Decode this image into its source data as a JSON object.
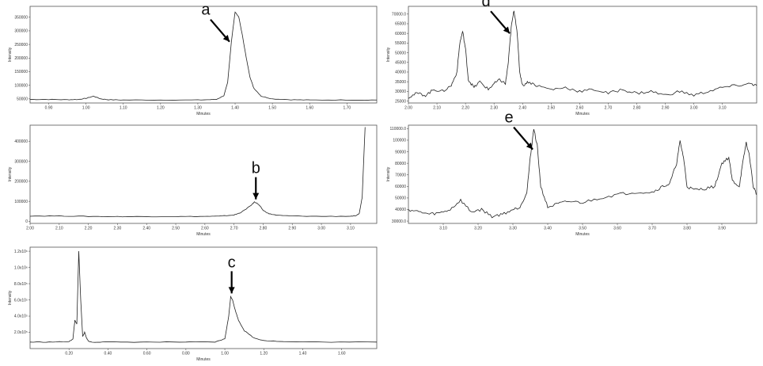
{
  "chart_data": [
    {
      "type": "line",
      "panel_label": "a",
      "xlabel": "Minutes",
      "ylabel": "Intensity",
      "xlim": [
        0.85,
        1.78
      ],
      "ylim": [
        35000,
        390000
      ],
      "x_ticks": [
        0.9,
        1.0,
        1.1,
        1.2,
        1.3,
        1.4,
        1.5,
        1.6,
        1.7
      ],
      "x_tick_labels": [
        "0.90",
        "1.00",
        "1.10",
        "1.20",
        "1.30",
        "1.40",
        "1.50",
        "1.60",
        "1.70"
      ],
      "y_ticks": [
        50000,
        100000,
        150000,
        200000,
        250000,
        300000,
        350000
      ],
      "y_tick_labels": [
        "50000",
        "100000",
        "150000",
        "200000",
        "250000",
        "300000",
        "350000"
      ],
      "series": [
        {
          "x": [
            0.85,
            0.9,
            0.95,
            0.98,
            1.0,
            1.02,
            1.04,
            1.06,
            1.1,
            1.2,
            1.3,
            1.35,
            1.37,
            1.38,
            1.39,
            1.4,
            1.41,
            1.42,
            1.43,
            1.44,
            1.45,
            1.47,
            1.5,
            1.55,
            1.6,
            1.7,
            1.78
          ],
          "y": [
            48000,
            48000,
            47000,
            48000,
            52000,
            60000,
            50000,
            47000,
            46000,
            46000,
            46000,
            48000,
            62000,
            110000,
            260000,
            370000,
            350000,
            280000,
            200000,
            130000,
            90000,
            60000,
            50000,
            47000,
            46000,
            46000,
            46000
          ]
        }
      ],
      "annotation": {
        "text": "a",
        "x": 1.385,
        "y": 260000
      }
    },
    {
      "type": "line",
      "panel_label": "b",
      "xlabel": "Minutes",
      "ylabel": "Intensity",
      "xlim": [
        2.0,
        3.19
      ],
      "ylim": [
        -10000,
        480000
      ],
      "x_ticks": [
        2.0,
        2.1,
        2.2,
        2.3,
        2.4,
        2.5,
        2.6,
        2.7,
        2.8,
        2.9,
        3.0,
        3.1
      ],
      "x_tick_labels": [
        "2.00",
        "2.10",
        "2.20",
        "2.30",
        "2.40",
        "2.50",
        "2.60",
        "2.70",
        "2.80",
        "2.90",
        "3.00",
        "3.10"
      ],
      "y_ticks": [
        0,
        100000,
        200000,
        300000,
        400000
      ],
      "y_tick_labels": [
        "0",
        "100000",
        "200000",
        "300000",
        "400000"
      ],
      "series": [
        {
          "x": [
            2.0,
            2.1,
            2.2,
            2.3,
            2.4,
            2.5,
            2.6,
            2.65,
            2.7,
            2.72,
            2.74,
            2.76,
            2.77,
            2.78,
            2.79,
            2.8,
            2.82,
            2.85,
            2.9,
            3.0,
            3.1,
            3.12,
            3.13,
            3.14,
            3.145,
            3.15
          ],
          "y": [
            27000,
            27000,
            25000,
            24000,
            24000,
            24000,
            25000,
            26000,
            32000,
            42000,
            60000,
            82000,
            97000,
            90000,
            75000,
            55000,
            38000,
            30000,
            27000,
            25000,
            26000,
            28000,
            40000,
            120000,
            300000,
            470000
          ]
        }
      ],
      "annotation": {
        "text": "b",
        "x": 2.775,
        "y": 110000
      }
    },
    {
      "type": "line",
      "panel_label": "c",
      "xlabel": "Minutes",
      "ylabel": "Intensity",
      "xlim": [
        0.0,
        1.78
      ],
      "ylim": [
        0,
        1250000
      ],
      "x_ticks": [
        0.2,
        0.4,
        0.6,
        0.8,
        1.0,
        1.2,
        1.4,
        1.6
      ],
      "x_tick_labels": [
        "0.20",
        "0.40",
        "0.60",
        "0.80",
        "1.00",
        "1.20",
        "1.40",
        "1.60"
      ],
      "y_ticks": [
        200000,
        400000,
        600000,
        800000,
        1000000,
        1200000
      ],
      "y_tick_labels": [
        "2.0x10⁵",
        "4.0x10⁵",
        "6.0x10⁵",
        "8.0x10⁵",
        "1.0x10⁶",
        "1.2x10⁶"
      ],
      "series": [
        {
          "x": [
            0.0,
            0.1,
            0.2,
            0.22,
            0.23,
            0.24,
            0.25,
            0.26,
            0.27,
            0.28,
            0.29,
            0.3,
            0.32,
            0.4,
            0.6,
            0.8,
            0.95,
            1.0,
            1.02,
            1.03,
            1.04,
            1.05,
            1.07,
            1.1,
            1.15,
            1.2,
            1.3,
            1.5,
            1.78
          ],
          "y": [
            80000,
            80000,
            85000,
            120000,
            350000,
            300000,
            1200000,
            600000,
            150000,
            200000,
            130000,
            90000,
            80000,
            80000,
            80000,
            80000,
            80000,
            120000,
            400000,
            640000,
            600000,
            500000,
            350000,
            220000,
            130000,
            100000,
            85000,
            80000,
            80000
          ]
        }
      ],
      "annotation": {
        "text": "c",
        "x": 1.035,
        "y": 680000
      }
    },
    {
      "type": "line",
      "panel_label": "d",
      "xlabel": "Minutes",
      "ylabel": "Intensity",
      "xlim": [
        2.0,
        3.22
      ],
      "ylim": [
        24000,
        74000
      ],
      "x_ticks": [
        2.0,
        2.1,
        2.2,
        2.3,
        2.4,
        2.5,
        2.6,
        2.7,
        2.8,
        2.9,
        3.0,
        3.1
      ],
      "x_tick_labels": [
        "2.00",
        "2.10",
        "2.20",
        "2.30",
        "2.40",
        "2.50",
        "2.60",
        "2.70",
        "2.80",
        "2.90",
        "3.00",
        "3.10"
      ],
      "y_ticks": [
        25000,
        30000,
        35000,
        40000,
        45000,
        50000,
        55000,
        60000,
        65000,
        70000
      ],
      "y_tick_labels": [
        "25000",
        "30000",
        "35000",
        "40000",
        "45000",
        "50000",
        "55000",
        "60000",
        "65000",
        "70000.0"
      ],
      "series": [
        {
          "x": [
            2.0,
            2.03,
            2.06,
            2.09,
            2.12,
            2.15,
            2.17,
            2.18,
            2.19,
            2.2,
            2.21,
            2.23,
            2.25,
            2.28,
            2.3,
            2.32,
            2.34,
            2.35,
            2.36,
            2.37,
            2.38,
            2.39,
            2.4,
            2.42,
            2.45,
            2.5,
            2.55,
            2.6,
            2.65,
            2.7,
            2.75,
            2.8,
            2.85,
            2.9,
            2.95,
            3.0,
            3.05,
            3.1,
            3.15,
            3.2,
            3.22
          ],
          "y": [
            27000,
            29000,
            28000,
            31000,
            30000,
            33000,
            40000,
            55000,
            61000,
            52000,
            36000,
            32000,
            35000,
            31000,
            34000,
            36000,
            34000,
            45000,
            63000,
            72000,
            62000,
            40000,
            33000,
            35000,
            33000,
            31000,
            32000,
            30000,
            31000,
            29000,
            31000,
            29000,
            30000,
            28000,
            30000,
            28000,
            30000,
            32000,
            33000,
            34000,
            33000
          ]
        }
      ],
      "annotation": {
        "text": "d",
        "x": 2.355,
        "y": 60000
      }
    },
    {
      "type": "line",
      "panel_label": "e",
      "xlabel": "Minutes",
      "ylabel": "Intensity",
      "xlim": [
        3.0,
        4.0
      ],
      "ylim": [
        28000,
        113000
      ],
      "x_ticks": [
        3.1,
        3.2,
        3.3,
        3.4,
        3.5,
        3.6,
        3.7,
        3.8,
        3.9
      ],
      "x_tick_labels": [
        "3.10",
        "3.20",
        "3.30",
        "3.40",
        "3.50",
        "3.60",
        "3.70",
        "3.80",
        "3.90"
      ],
      "y_ticks": [
        30000,
        40000,
        50000,
        60000,
        70000,
        80000,
        90000,
        100000,
        110000
      ],
      "y_tick_labels": [
        "30000.0",
        "40000",
        "50000",
        "60000",
        "70000",
        "80000",
        "90000",
        "100000",
        "110000.0"
      ],
      "series": [
        {
          "x": [
            3.0,
            3.03,
            3.06,
            3.09,
            3.12,
            3.15,
            3.18,
            3.21,
            3.24,
            3.27,
            3.3,
            3.32,
            3.34,
            3.35,
            3.36,
            3.37,
            3.38,
            3.4,
            3.43,
            3.46,
            3.5,
            3.55,
            3.6,
            3.65,
            3.7,
            3.73,
            3.75,
            3.77,
            3.78,
            3.79,
            3.8,
            3.82,
            3.85,
            3.88,
            3.9,
            3.92,
            3.93,
            3.95,
            3.96,
            3.97,
            3.98,
            3.99,
            4.0
          ],
          "y": [
            40000,
            38000,
            36000,
            37000,
            40000,
            48000,
            38000,
            40000,
            34000,
            36000,
            40000,
            42000,
            55000,
            85000,
            110000,
            95000,
            60000,
            42000,
            45000,
            47000,
            46000,
            50000,
            53000,
            55000,
            55000,
            60000,
            62000,
            80000,
            99000,
            85000,
            60000,
            57000,
            58000,
            60000,
            80000,
            85000,
            65000,
            60000,
            80000,
            98000,
            85000,
            60000,
            53000
          ]
        }
      ],
      "annotation": {
        "text": "e",
        "x": 3.357,
        "y": 92000
      }
    }
  ]
}
